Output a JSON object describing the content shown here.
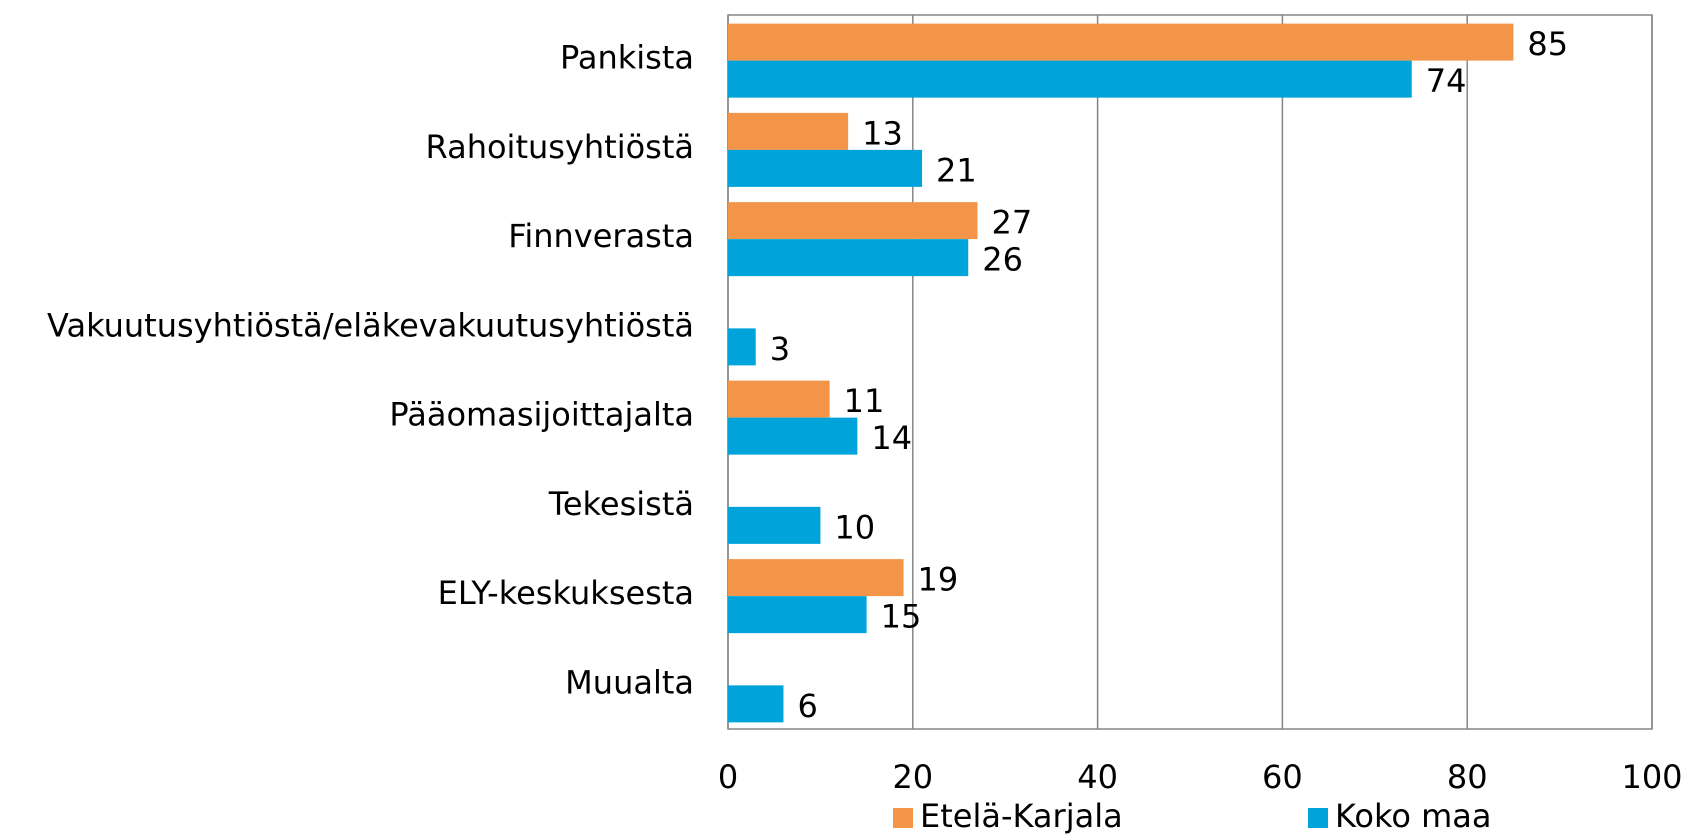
{
  "chart_data": {
    "type": "hbar",
    "categories": [
      "Pankista",
      "Rahoitusyhtiöstä",
      "Finnverasta",
      "Vakuutusyhtiöstä/eläkevakuutusyhtiöstä",
      "Pääomasijoittajalta",
      "Tekesistä",
      "ELY-keskuksesta",
      "Muualta"
    ],
    "series": [
      {
        "name": "Etelä-Karjala",
        "color": "#f39549",
        "values": [
          85,
          13,
          27,
          null,
          11,
          null,
          19,
          null
        ]
      },
      {
        "name": "Koko maa",
        "color": "#00a3da",
        "values": [
          74,
          21,
          26,
          3,
          14,
          10,
          15,
          6
        ]
      }
    ],
    "xlim": [
      0,
      100
    ],
    "xticks": [
      0,
      20,
      40,
      60,
      80,
      100
    ],
    "grid": true,
    "legend": "bottom"
  }
}
